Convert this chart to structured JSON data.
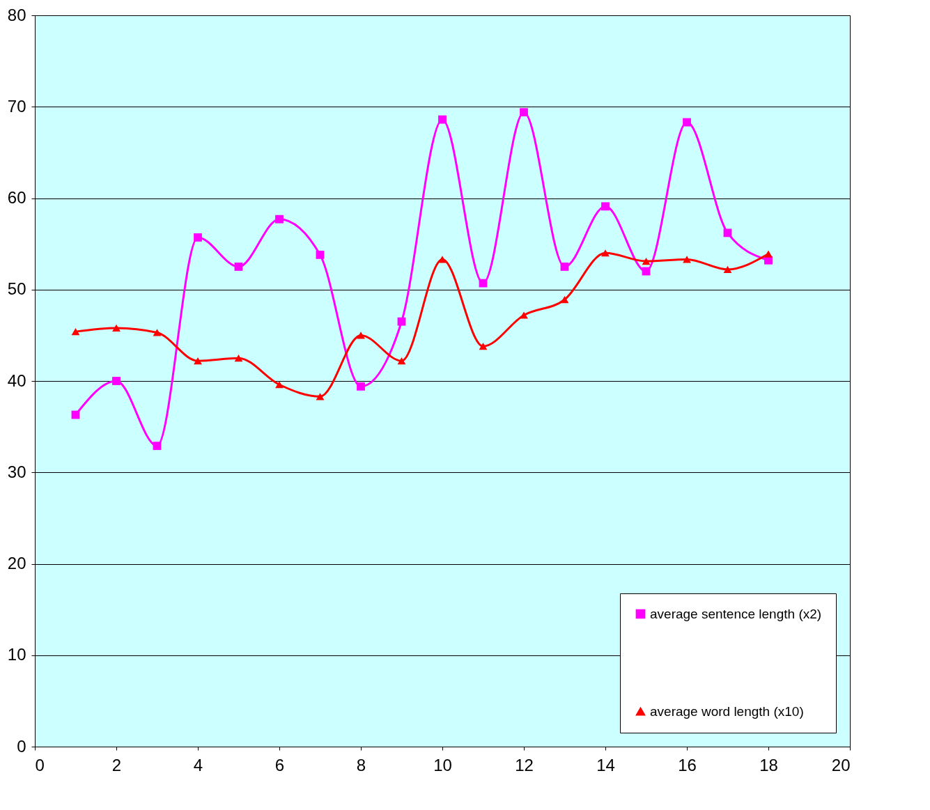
{
  "chart_data": {
    "type": "line",
    "x": [
      1,
      2,
      3,
      4,
      5,
      6,
      7,
      8,
      9,
      10,
      11,
      12,
      13,
      14,
      15,
      16,
      17,
      18
    ],
    "series": [
      {
        "name": "average sentence length (x2)",
        "color": "#ff00ff",
        "marker": "square",
        "values": [
          36.3,
          40.0,
          32.9,
          55.7,
          52.5,
          57.7,
          53.8,
          39.4,
          46.5,
          68.6,
          50.7,
          69.4,
          52.5,
          59.1,
          52.0,
          68.3,
          56.2,
          53.2
        ]
      },
      {
        "name": "average word length (x10)",
        "color": "#ff0000",
        "marker": "triangle",
        "values": [
          45.4,
          45.8,
          45.3,
          42.2,
          42.5,
          39.6,
          38.3,
          45.0,
          42.2,
          53.3,
          43.8,
          47.2,
          48.9,
          54.0,
          53.1,
          53.3,
          52.2,
          53.9
        ]
      }
    ],
    "xlim": [
      0,
      20
    ],
    "xticks": [
      0,
      2,
      4,
      6,
      8,
      10,
      12,
      14,
      16,
      18,
      20
    ],
    "ylim": [
      0,
      80
    ],
    "yticks": [
      0,
      10,
      20,
      30,
      40,
      50,
      60,
      70,
      80
    ],
    "grid": "y",
    "legend": "bottom right"
  }
}
